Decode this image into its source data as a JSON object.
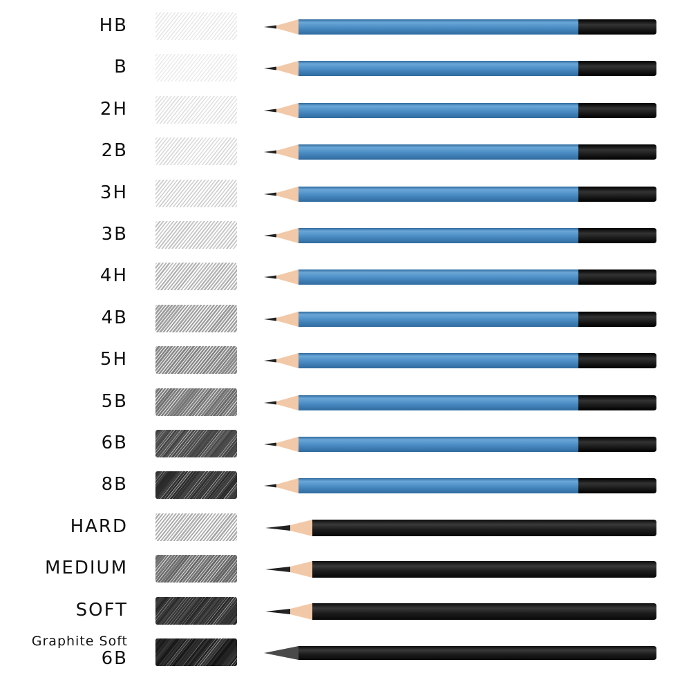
{
  "pencils": [
    {
      "label": "HB",
      "body": "blue",
      "darkness": 0.18
    },
    {
      "label": "B",
      "body": "blue",
      "darkness": 0.16
    },
    {
      "label": "2H",
      "body": "blue",
      "darkness": 0.22
    },
    {
      "label": "2B",
      "body": "blue",
      "darkness": 0.26
    },
    {
      "label": "3H",
      "body": "blue",
      "darkness": 0.32
    },
    {
      "label": "3B",
      "body": "blue",
      "darkness": 0.38
    },
    {
      "label": "4H",
      "body": "blue",
      "darkness": 0.46
    },
    {
      "label": "4B",
      "body": "blue",
      "darkness": 0.56
    },
    {
      "label": "5H",
      "body": "blue",
      "darkness": 0.64
    },
    {
      "label": "5B",
      "body": "blue",
      "darkness": 0.7
    },
    {
      "label": "6B",
      "body": "blue",
      "darkness": 0.82
    },
    {
      "label": "8B",
      "body": "blue",
      "darkness": 0.9
    },
    {
      "label": "HARD",
      "body": "black",
      "darkness": 0.5
    },
    {
      "label": "MEDIUM",
      "body": "black",
      "darkness": 0.72
    },
    {
      "label": "SOFT",
      "body": "black",
      "darkness": 0.9
    },
    {
      "label": "Graphite Soft",
      "label2": "6B",
      "body": "graphite",
      "darkness": 0.95
    }
  ],
  "colors": {
    "blue_body": "#4a8cc4",
    "blue_body_light": "#6ba7d8",
    "blue_body_dark": "#2f6a9e",
    "black_body": "#1e1e1e",
    "wood": "#f2c9a8",
    "lead": "#222222",
    "label_text": "#111111"
  },
  "icons": {
    "swatch": "graphite-shading-swatch-icon",
    "pencil": "pencil-icon"
  }
}
